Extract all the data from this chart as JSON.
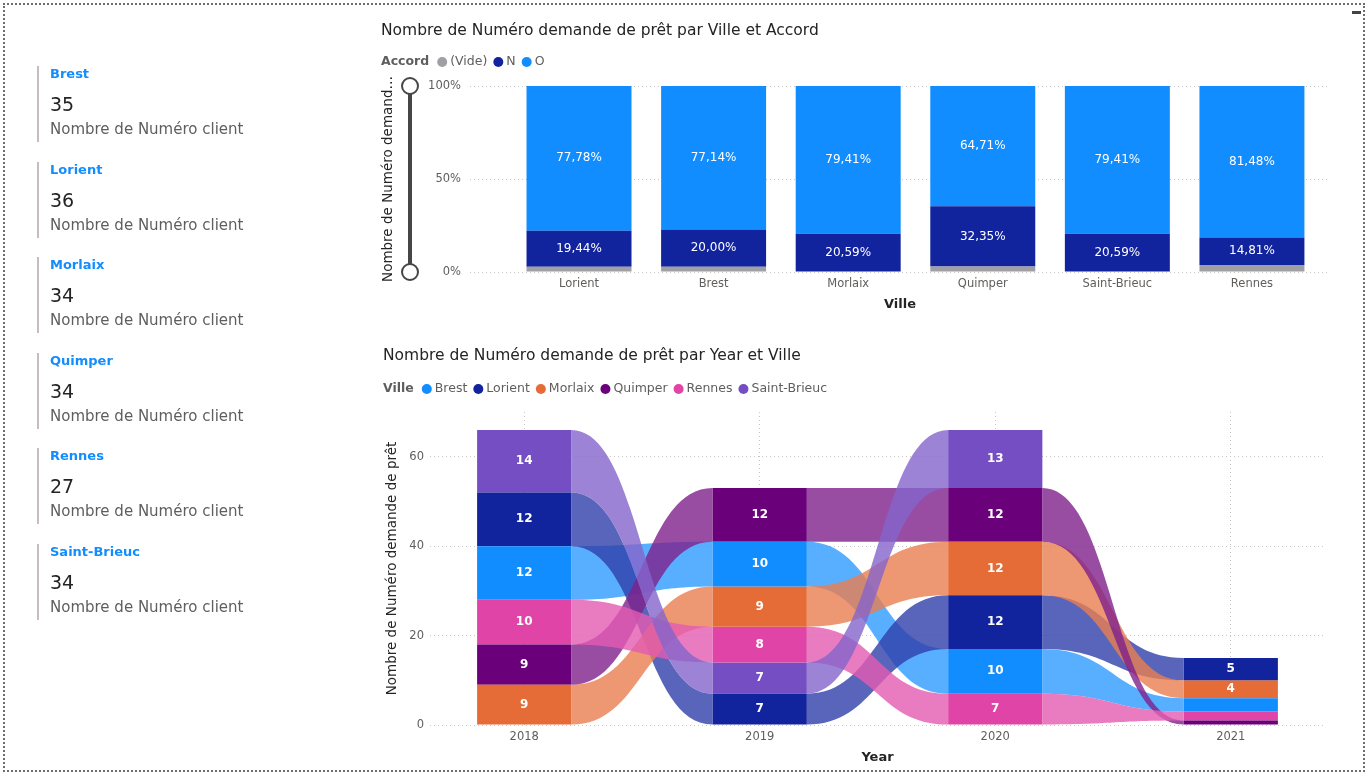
{
  "chart_data": [
    {
      "type": "other",
      "data_labels": true,
      "categories": [
        "Brest",
        "Lorient",
        "Morlaix",
        "Quimper",
        "Rennes",
        "Saint-Brieuc"
      ],
      "series": [
        {
          "name": "Nombre de Numéro client",
          "values": [
            35,
            36,
            34,
            34,
            27,
            34
          ]
        }
      ]
    },
    {
      "type": "bar",
      "stacked": true,
      "title": "Nombre de Numéro demande de prêt par Ville et Accord",
      "legend_title": "Accord",
      "legend": "top left",
      "xlabel": "Ville",
      "ylabel": "Nombre de Numéro demand…",
      "categories": [
        "Lorient",
        "Brest",
        "Morlaix",
        "Quimper",
        "Saint-Brieuc",
        "Rennes"
      ],
      "ylim": [
        0,
        100
      ],
      "yticks": [
        {
          "value": 0,
          "label": "0%"
        },
        {
          "value": 50,
          "label": "50%"
        },
        {
          "value": 100,
          "label": "100%"
        }
      ],
      "grid": "y",
      "series": [
        {
          "name": "(Vide)",
          "color": "#a09fa3",
          "values": [
            2.78,
            2.86,
            null,
            2.94,
            null,
            3.7
          ],
          "value_labels": [
            null,
            null,
            null,
            null,
            null,
            null
          ]
        },
        {
          "name": "N",
          "color": "#12239e",
          "values": [
            19.44,
            20.0,
            20.59,
            32.35,
            20.59,
            14.81
          ],
          "value_labels": [
            "19,44%",
            "20,00%",
            "20,59%",
            "32,35%",
            "20,59%",
            "14,81%"
          ]
        },
        {
          "name": "O",
          "color": "#118dff",
          "values": [
            77.78,
            77.14,
            79.41,
            64.71,
            79.41,
            81.48
          ],
          "value_labels": [
            "77,78%",
            "77,14%",
            "79,41%",
            "64,71%",
            "79,41%",
            "81,48%"
          ]
        }
      ]
    },
    {
      "type": "bar",
      "title": "Nombre de Numéro demande de prêt par Year et Ville",
      "legend_title": "Ville",
      "legend": "top left",
      "xlabel": "Year",
      "ylabel": "Nombre de Numéro demande de prêt",
      "categories": [
        "2018",
        "2019",
        "2020",
        "2021"
      ],
      "ylim": [
        0,
        70
      ],
      "yticks": [
        0,
        20,
        40,
        60
      ],
      "grid": true,
      "series": [
        {
          "name": "Brest",
          "color": "#118dff",
          "values": [
            12,
            10,
            10,
            3
          ],
          "base": [
            28,
            31,
            7,
            3
          ],
          "value_labels": [
            "12",
            "10",
            "10",
            null
          ]
        },
        {
          "name": "Lorient",
          "color": "#12239e",
          "values": [
            12,
            7,
            12,
            5
          ],
          "base": [
            40,
            0,
            17,
            10
          ],
          "value_labels": [
            "12",
            "7",
            "12",
            "5"
          ]
        },
        {
          "name": "Morlaix",
          "color": "#e66c37",
          "values": [
            9,
            9,
            12,
            4
          ],
          "base": [
            0,
            22,
            29,
            6
          ],
          "value_labels": [
            "9",
            "9",
            "12",
            "4"
          ]
        },
        {
          "name": "Quimper",
          "color": "#6b007b",
          "values": [
            9,
            12,
            12,
            1
          ],
          "base": [
            9,
            41,
            41,
            0
          ],
          "value_labels": [
            "9",
            "12",
            "12",
            null
          ]
        },
        {
          "name": "Rennes",
          "color": "#e044a7",
          "values": [
            10,
            8,
            7,
            2
          ],
          "base": [
            18,
            14,
            0,
            1
          ],
          "value_labels": [
            "10",
            "8",
            "7",
            null
          ]
        },
        {
          "name": "Saint-Brieuc",
          "color": "#744ec2",
          "values": [
            14,
            7,
            13,
            null
          ],
          "base": [
            52,
            7,
            53,
            null
          ],
          "value_labels": [
            "14",
            "7",
            "13",
            null
          ]
        }
      ]
    }
  ]
}
